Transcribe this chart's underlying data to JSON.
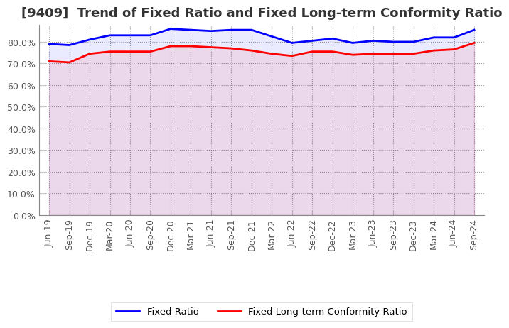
{
  "title": "[9409]  Trend of Fixed Ratio and Fixed Long-term Conformity Ratio",
  "x_labels": [
    "Jun-19",
    "Sep-19",
    "Dec-19",
    "Mar-20",
    "Jun-20",
    "Sep-20",
    "Dec-20",
    "Mar-21",
    "Jun-21",
    "Sep-21",
    "Dec-21",
    "Mar-22",
    "Jun-22",
    "Sep-22",
    "Dec-22",
    "Mar-23",
    "Jun-23",
    "Sep-23",
    "Dec-23",
    "Mar-24",
    "Jun-24",
    "Sep-24"
  ],
  "fixed_ratio": [
    79.0,
    78.5,
    81.0,
    83.0,
    83.0,
    83.0,
    86.0,
    85.5,
    85.0,
    85.5,
    85.5,
    82.5,
    79.5,
    80.5,
    81.5,
    79.5,
    80.5,
    80.0,
    80.0,
    82.0,
    82.0,
    85.5
  ],
  "fixed_lt_ratio": [
    71.0,
    70.5,
    74.5,
    75.5,
    75.5,
    75.5,
    78.0,
    78.0,
    77.5,
    77.0,
    76.0,
    74.5,
    73.5,
    75.5,
    75.5,
    74.0,
    74.5,
    74.5,
    74.5,
    76.0,
    76.5,
    79.5
  ],
  "fixed_ratio_color": "#0000FF",
  "fixed_lt_ratio_color": "#FF0000",
  "ylim": [
    0,
    88
  ],
  "yticks": [
    0,
    10,
    20,
    30,
    40,
    50,
    60,
    70,
    80
  ],
  "background_color": "#FFFFFF",
  "plot_bg_color": "#FFFFFF",
  "grid_color": "#999999",
  "legend_fixed_ratio": "Fixed Ratio",
  "legend_fixed_lt_ratio": "Fixed Long-term Conformity Ratio",
  "title_fontsize": 13,
  "tick_fontsize": 9,
  "line_width": 2.0
}
